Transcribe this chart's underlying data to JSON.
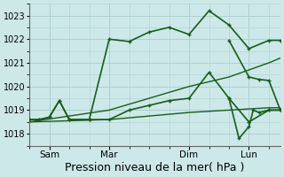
{
  "background_color": "#cce8e8",
  "grid_color": "#b0d0d0",
  "line_color": "#1a5c1a",
  "title": "Pression niveau de la mer( hPa )",
  "ylim": [
    1017.5,
    1023.5
  ],
  "yticks": [
    1018,
    1019,
    1020,
    1021,
    1022,
    1023
  ],
  "x_tick_labels": [
    "Sam",
    "Mar",
    "Dim",
    "Lun"
  ],
  "x_tick_positions": [
    14,
    56,
    112,
    154
  ],
  "xlim": [
    0,
    176
  ],
  "series": [
    {
      "x": [
        0,
        7,
        14,
        21,
        28,
        42,
        56,
        70,
        84,
        98,
        112,
        126,
        140,
        154,
        168,
        176
      ],
      "y": [
        1018.6,
        1018.6,
        1018.7,
        1019.4,
        1018.6,
        1018.6,
        1022.0,
        1021.9,
        1022.3,
        1022.5,
        1022.2,
        1023.2,
        1022.6,
        1021.6,
        1021.95,
        1021.95
      ]
    },
    {
      "x": [
        0,
        7,
        14,
        21,
        28,
        42,
        56,
        70,
        84,
        98,
        112,
        126,
        140,
        154,
        168,
        176
      ],
      "y": [
        1018.6,
        1018.6,
        1018.7,
        1019.4,
        1018.6,
        1018.6,
        1018.6,
        1019.0,
        1019.2,
        1019.4,
        1019.5,
        1020.6,
        1019.5,
        1018.5,
        1019.0,
        1019.0
      ]
    },
    {
      "x": [
        0,
        56,
        112,
        140,
        168,
        176
      ],
      "y": [
        1018.5,
        1018.6,
        1018.9,
        1019.0,
        1019.1,
        1019.1
      ]
    },
    {
      "x": [
        0,
        56,
        112,
        140,
        168,
        176
      ],
      "y": [
        1018.5,
        1019.0,
        1020.0,
        1020.4,
        1021.0,
        1021.2
      ]
    },
    {
      "x": [
        140,
        154,
        161,
        168,
        176
      ],
      "y": [
        1021.95,
        1020.4,
        1020.3,
        1020.25,
        1019.0
      ]
    },
    {
      "x": [
        140,
        147,
        154,
        157,
        161,
        168,
        176
      ],
      "y": [
        1019.5,
        1017.8,
        1018.3,
        1019.0,
        1018.9,
        1019.0,
        1019.0
      ]
    }
  ],
  "vlines": [
    14,
    56,
    112,
    154
  ],
  "title_fontsize": 9,
  "ytick_fontsize": 7,
  "xtick_fontsize": 7.5
}
